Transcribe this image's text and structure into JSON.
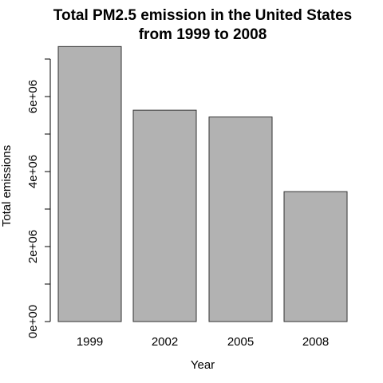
{
  "chart_data": {
    "type": "bar",
    "title_line1": "Total PM2.5 emission in the United States",
    "title_line2": "from 1999 to 2008",
    "xlabel": "Year",
    "ylabel": "Total emissions",
    "categories": [
      "1999",
      "2002",
      "2005",
      "2008"
    ],
    "values": [
      7332967,
      5635780,
      5454703,
      3464206
    ],
    "ylim": [
      0,
      7000000
    ],
    "yticks": [
      0,
      2000000,
      4000000,
      6000000
    ],
    "yticklabels": [
      "0e+00",
      "2e+06",
      "4e+06",
      "6e+06"
    ],
    "bar_fill": "#b2b2b2",
    "bar_stroke": "#333333",
    "grid": false,
    "legend": "none"
  }
}
